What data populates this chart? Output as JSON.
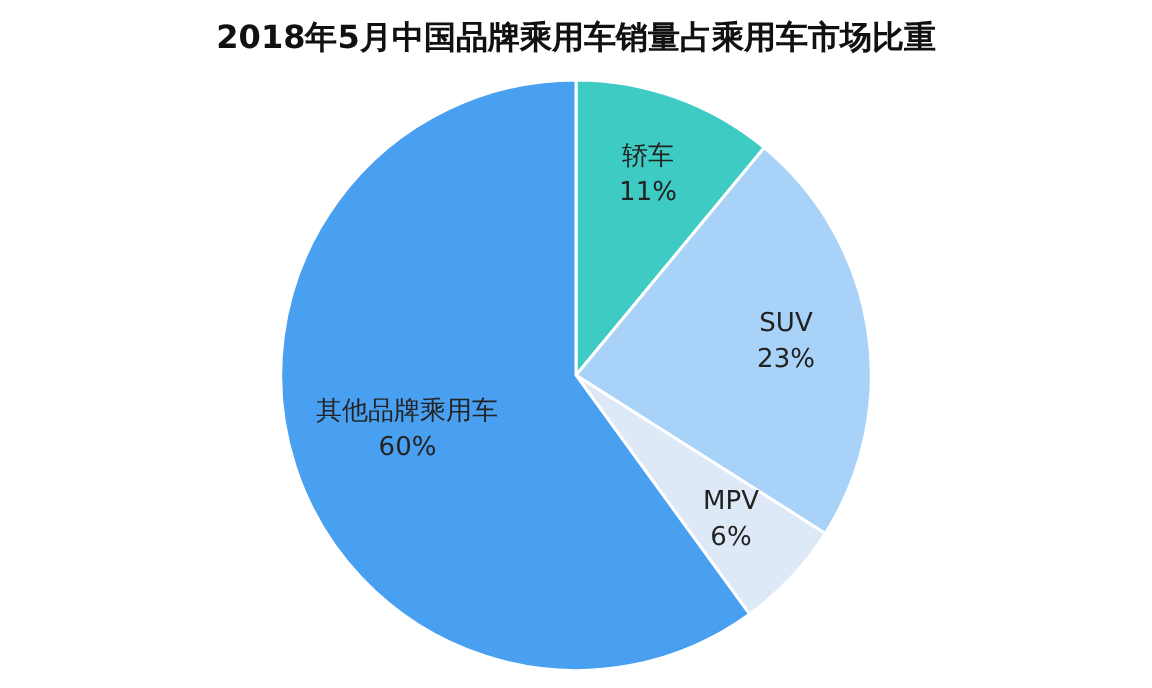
{
  "chart_data": {
    "type": "pie",
    "title": "2018年5月中国品牌乘用车销量占乘用车市场比重",
    "categories": [
      "轿车",
      "SUV",
      "MPV",
      "其他品牌乘用车"
    ],
    "values": [
      11,
      23,
      6,
      60
    ],
    "value_labels": [
      "11%",
      "23%",
      "6%",
      "60%"
    ],
    "colors": [
      "#3ecbc3",
      "#a8d2f7",
      "#dde9f6",
      "#4aa0f0"
    ],
    "legend": false
  }
}
